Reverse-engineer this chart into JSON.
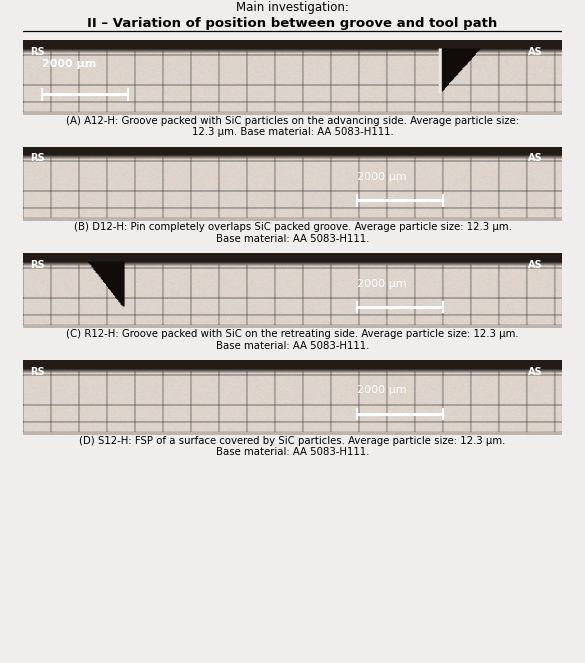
{
  "title_line1": "Main investigation:",
  "title_line2": "II – Variation of position between groove and tool path",
  "bg_color": "#f0eeec",
  "fig_width": 5.85,
  "fig_height": 6.63,
  "dpi": 100,
  "panels": [
    {
      "caption_bold": "(A) A12-H:",
      "caption_normal": " Groove packed with SiC particles on the advancing side. Average particle size:\n12.3 μm. Base material: AA 5083-H111.",
      "scale_label": "2000 μm",
      "scale_pos": "left",
      "defect": "right"
    },
    {
      "caption_bold": "(B) D12-H:",
      "caption_normal": " Pin completely overlaps SiC packed groove. Average particle size: 12.3 μm.\nBase material: AA 5083-H111.",
      "scale_label": "2000 μm",
      "scale_pos": "right",
      "defect": "none"
    },
    {
      "caption_bold": "(C) R12-H:",
      "caption_normal": " Groove packed with SiC on the retreating side. Average particle size: 12.3 μm.\nBase material: AA 5083-H111.",
      "scale_label": "2000 μm",
      "scale_pos": "right",
      "defect": "left"
    },
    {
      "caption_bold": "(D) S12-H:",
      "caption_normal": " FSP of a surface covered by SiC particles. Average particle size: 12.3 μm.\nBase material: AA 5083-H111.",
      "scale_label": "2000 μm",
      "scale_pos": "right",
      "defect": "none"
    }
  ]
}
